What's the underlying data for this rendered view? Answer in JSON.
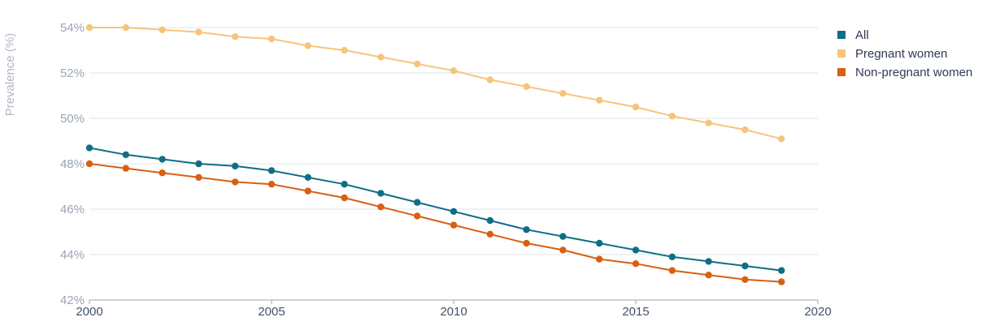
{
  "chart_data": {
    "type": "line",
    "ylabel": "Prevalence (%)",
    "xlim": [
      2000,
      2020
    ],
    "ylim": [
      42,
      54
    ],
    "x_ticks": [
      2000,
      2005,
      2010,
      2015,
      2020
    ],
    "y_ticks": [
      42,
      44,
      46,
      48,
      50,
      52,
      54
    ],
    "y_tick_suffix": "%",
    "grid": "horizontal",
    "legend_position": "top-right",
    "x": [
      2000,
      2001,
      2002,
      2003,
      2004,
      2005,
      2006,
      2007,
      2008,
      2009,
      2010,
      2011,
      2012,
      2013,
      2014,
      2015,
      2016,
      2017,
      2018,
      2019
    ],
    "series": [
      {
        "name": "All",
        "color": "#0e6e86",
        "values": [
          48.7,
          48.4,
          48.2,
          48.0,
          47.9,
          47.7,
          47.4,
          47.1,
          46.7,
          46.3,
          45.9,
          45.5,
          45.1,
          44.8,
          44.5,
          44.2,
          43.9,
          43.7,
          43.5,
          43.3
        ]
      },
      {
        "name": "Pregnant women",
        "color": "#f7c47b",
        "values": [
          54.0,
          54.0,
          53.9,
          53.8,
          53.6,
          53.5,
          53.2,
          53.0,
          52.7,
          52.4,
          52.1,
          51.7,
          51.4,
          51.1,
          50.8,
          50.5,
          50.1,
          49.8,
          49.5,
          49.1
        ]
      },
      {
        "name": "Non-pregnant women",
        "color": "#d85f13",
        "values": [
          48.0,
          47.8,
          47.6,
          47.4,
          47.2,
          47.1,
          46.8,
          46.5,
          46.1,
          45.7,
          45.3,
          44.9,
          44.5,
          44.2,
          43.8,
          43.6,
          43.3,
          43.1,
          42.9,
          42.8
        ]
      }
    ]
  }
}
